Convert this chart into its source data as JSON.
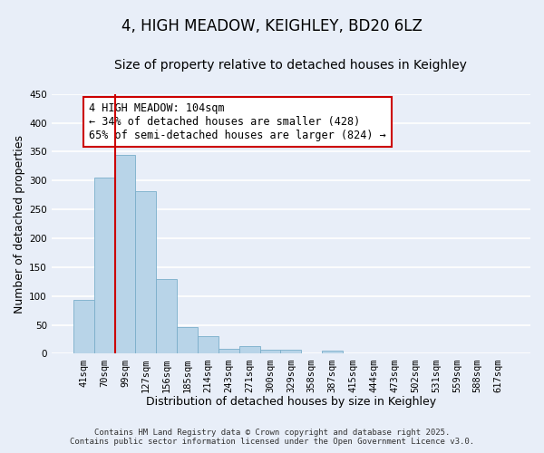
{
  "title": "4, HIGH MEADOW, KEIGHLEY, BD20 6LZ",
  "subtitle": "Size of property relative to detached houses in Keighley",
  "xlabel": "Distribution of detached houses by size in Keighley",
  "ylabel": "Number of detached properties",
  "bar_labels": [
    "41sqm",
    "70sqm",
    "99sqm",
    "127sqm",
    "156sqm",
    "185sqm",
    "214sqm",
    "243sqm",
    "271sqm",
    "300sqm",
    "329sqm",
    "358sqm",
    "387sqm",
    "415sqm",
    "444sqm",
    "473sqm",
    "502sqm",
    "531sqm",
    "559sqm",
    "588sqm",
    "617sqm"
  ],
  "bar_values": [
    93,
    305,
    344,
    282,
    130,
    46,
    30,
    9,
    13,
    7,
    7,
    0,
    6,
    0,
    1,
    0,
    0,
    0,
    0,
    0,
    1
  ],
  "bar_color": "#b8d4e8",
  "bar_edge_color": "#7aaeca",
  "vline_color": "#cc0000",
  "vline_x_index": 1.5,
  "annotation_title": "4 HIGH MEADOW: 104sqm",
  "annotation_line1": "← 34% of detached houses are smaller (428)",
  "annotation_line2": "65% of semi-detached houses are larger (824) →",
  "annotation_box_color": "#ffffff",
  "annotation_box_edge": "#cc0000",
  "ylim": [
    0,
    450
  ],
  "yticks": [
    0,
    50,
    100,
    150,
    200,
    250,
    300,
    350,
    400,
    450
  ],
  "footer_line1": "Contains HM Land Registry data © Crown copyright and database right 2025.",
  "footer_line2": "Contains public sector information licensed under the Open Government Licence v3.0.",
  "bg_color": "#e8eef8",
  "plot_bg_color": "#e8eef8",
  "grid_color": "#ffffff",
  "title_fontsize": 12,
  "subtitle_fontsize": 10,
  "axis_label_fontsize": 9,
  "tick_fontsize": 7.5,
  "annotation_fontsize": 8.5,
  "footer_fontsize": 6.5
}
